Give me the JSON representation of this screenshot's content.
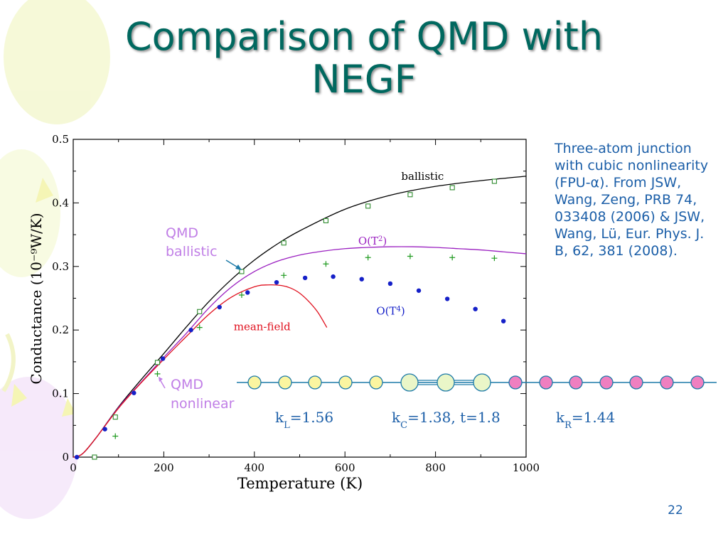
{
  "slide": {
    "title_line1": "Comparison of QMD with",
    "title_line2": "NEGF",
    "note": "Three-atom junction with cubic nonlinearity (FPU-α).  From JSW, Wang, Zeng, PRB 74, 033408 (2006) & JSW, Wang, Lü, Eur. Phys. J. B, 62, 381 (2008).",
    "slide_number": "22"
  },
  "colors": {
    "title": "#00685f",
    "text_blue": "#1c5fa8",
    "ballistic": "#000000",
    "o_t2": "#9a1fc0",
    "mean_field": "#e0101e",
    "qmd_nonlinear": "#1520c8",
    "plus_markers": "#1f9a1f",
    "square_markers": "#2e8b2e",
    "annotation_purple": "#c07ee6",
    "chain_yellow": "#fbf5a0",
    "chain_center": "#eaf6c8",
    "chain_pink": "#ef7fc0",
    "chain_line": "#1c7aa8"
  },
  "chart_data": {
    "type": "scatter",
    "xlabel": "Temperature (K)",
    "ylabel": "Conductance (10⁻⁹W/K)",
    "xlim": [
      0,
      1000
    ],
    "ylim": [
      0,
      0.5
    ],
    "xticks": [
      0,
      200,
      400,
      600,
      800,
      1000
    ],
    "xtick_labels": [
      "0",
      "200",
      "400",
      "600",
      "800",
      "1000"
    ],
    "yticks": [
      0,
      0.1,
      0.2,
      0.3,
      0.4,
      0.5
    ],
    "ytick_labels": [
      "0",
      "0.1",
      "0.2",
      "0.3",
      "0.4",
      "0.5"
    ],
    "grid": false,
    "series": [
      {
        "name": "ballistic",
        "kind": "line",
        "color": "#000000",
        "x": [
          0,
          20,
          50,
          100,
          150,
          200,
          250,
          300,
          350,
          400,
          450,
          500,
          600,
          700,
          800,
          900,
          1000
        ],
        "y": [
          0,
          0.005,
          0.03,
          0.079,
          0.122,
          0.163,
          0.205,
          0.245,
          0.28,
          0.31,
          0.335,
          0.356,
          0.39,
          0.412,
          0.426,
          0.435,
          0.442
        ]
      },
      {
        "name": "O(T²)",
        "kind": "line",
        "color": "#9a1fc0",
        "x": [
          0,
          20,
          50,
          100,
          150,
          200,
          250,
          300,
          350,
          400,
          450,
          500,
          550,
          600,
          650,
          700,
          750,
          800,
          850,
          900,
          950,
          1000
        ],
        "y": [
          0,
          0.005,
          0.03,
          0.078,
          0.118,
          0.157,
          0.195,
          0.235,
          0.268,
          0.292,
          0.308,
          0.318,
          0.324,
          0.328,
          0.33,
          0.331,
          0.331,
          0.33,
          0.328,
          0.326,
          0.323,
          0.32
        ]
      },
      {
        "name": "mean-field",
        "kind": "line",
        "color": "#e0101e",
        "x": [
          0,
          20,
          50,
          100,
          150,
          200,
          250,
          300,
          350,
          400,
          430,
          460,
          480,
          500,
          520,
          540,
          560
        ],
        "y": [
          0,
          0.005,
          0.03,
          0.077,
          0.117,
          0.154,
          0.19,
          0.225,
          0.252,
          0.268,
          0.271,
          0.27,
          0.266,
          0.258,
          0.245,
          0.228,
          0.204
        ]
      },
      {
        "name": "QMD ballistic",
        "kind": "markers",
        "marker": "square",
        "color": "#2e8b2e",
        "x": [
          47,
          93,
          186,
          279,
          372,
          465,
          558,
          651,
          744,
          837,
          930
        ],
        "y": [
          0.0,
          0.063,
          0.149,
          0.229,
          0.292,
          0.337,
          0.372,
          0.395,
          0.413,
          0.424,
          0.434
        ]
      },
      {
        "name": "O(T⁴)",
        "kind": "markers",
        "marker": "plus",
        "color": "#1f9a1f",
        "x": [
          93,
          186,
          279,
          372,
          465,
          558,
          651,
          744,
          837,
          930
        ],
        "y": [
          0.033,
          0.131,
          0.204,
          0.255,
          0.286,
          0.304,
          0.314,
          0.316,
          0.314,
          0.313
        ]
      },
      {
        "name": "QMD nonlinear",
        "kind": "markers",
        "marker": "dot",
        "color": "#1520c8",
        "x": [
          8,
          70,
          134,
          198,
          260,
          323,
          385,
          449,
          512,
          574,
          637,
          700,
          763,
          826,
          888,
          950
        ],
        "y": [
          0.0,
          0.044,
          0.101,
          0.155,
          0.2,
          0.236,
          0.259,
          0.275,
          0.282,
          0.284,
          0.28,
          0.273,
          0.262,
          0.249,
          0.233,
          0.214
        ]
      }
    ],
    "labels": [
      {
        "text": "ballistic",
        "x": 795,
        "y": 0.442,
        "color": "#000000"
      },
      {
        "text": "mean-field",
        "x": 425,
        "y": 0.205,
        "color": "#e0101e"
      }
    ],
    "o_t2_label": {
      "base": "O(T",
      "sup": "2",
      "close": ")",
      "x": 700,
      "y": 0.34,
      "color": "#9a1fc0"
    },
    "o_t4_label": {
      "base": "O(T",
      "sup": "4",
      "close": ")",
      "x": 740,
      "y": 0.23,
      "color": "#1520c8"
    },
    "annotations": [
      {
        "line1": "QMD",
        "line2": "ballistic",
        "color": "#c07ee6"
      },
      {
        "line1": "QMD",
        "line2": "nonlinear",
        "color": "#c07ee6"
      }
    ]
  },
  "chain": {
    "kL_label": {
      "k": "k",
      "sub": "L",
      "rest": "=1.56"
    },
    "kC_label": {
      "k": "k",
      "sub": "C",
      "rest": "=1.38, t=1.8"
    },
    "kR_label": {
      "k": "k",
      "sub": "R",
      "rest": "=1.44"
    }
  }
}
